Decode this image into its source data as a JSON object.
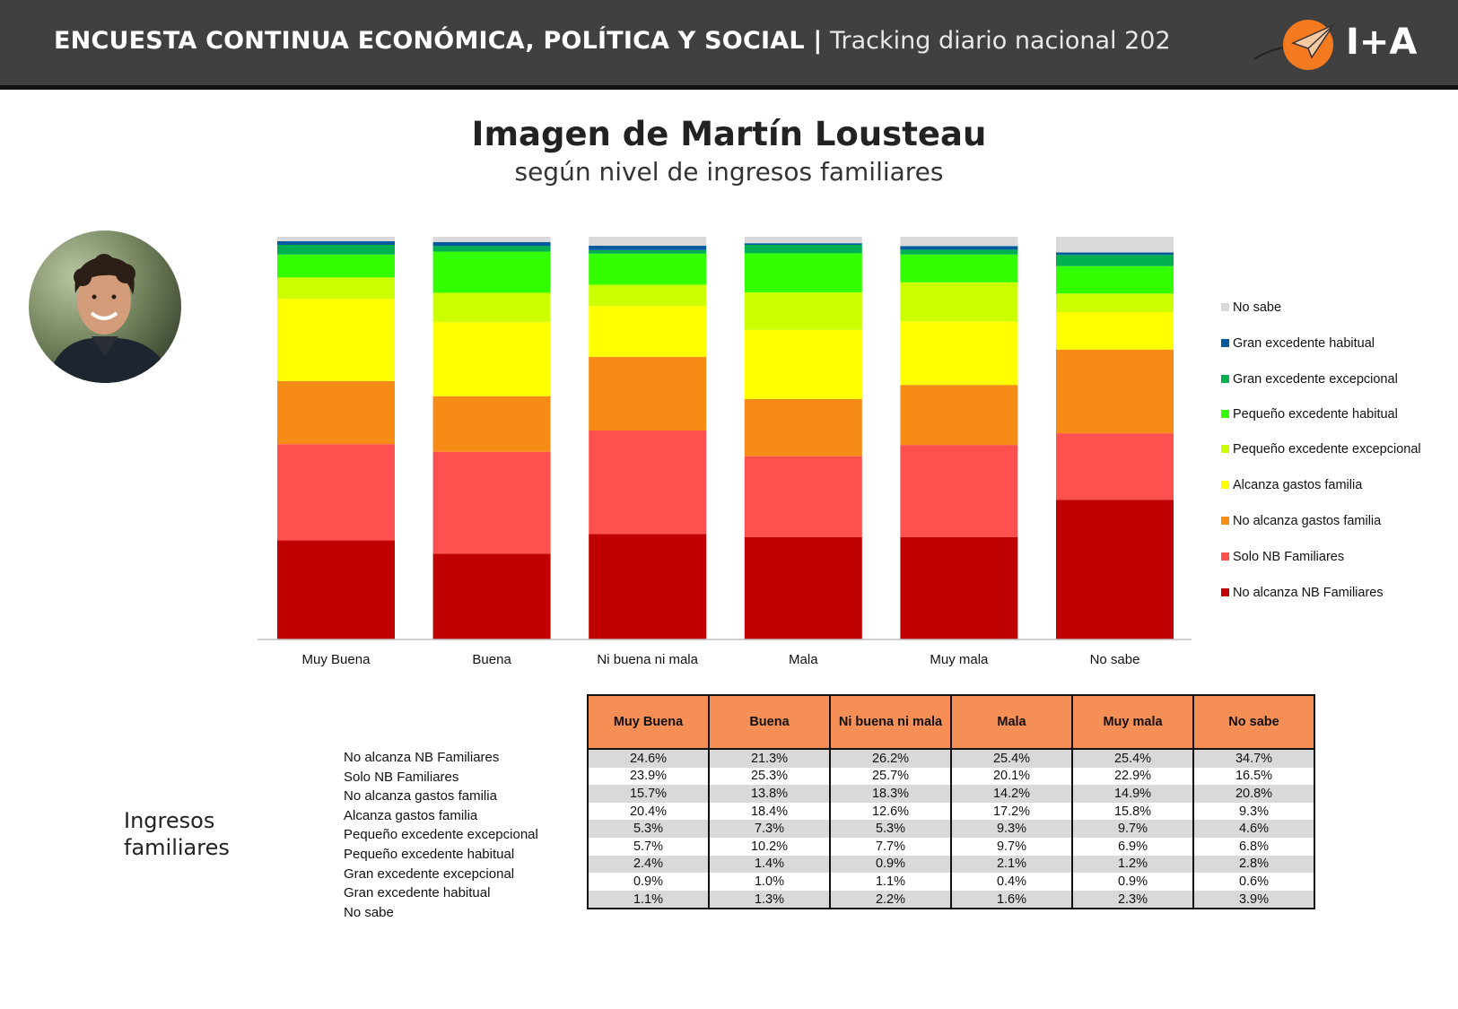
{
  "header": {
    "title_bold": "ENCUESTA CONTINUA ECONÓMICA, POLÍTICA Y SOCIAL |",
    "title_thin": "Tracking diario nacional 202",
    "logo_text": "I+A"
  },
  "colors": {
    "header_bg": "#404040",
    "table_header": "#f58f56"
  },
  "chart_data": {
    "type": "bar",
    "stacked": true,
    "normalized": true,
    "title": "Imagen de Martín Lousteau",
    "subtitle": "según nivel de ingresos familiares",
    "categories": [
      "Muy Buena",
      "Buena",
      "Ni buena ni mala",
      "Mala",
      "Muy mala",
      "No sabe"
    ],
    "ylim": [
      0,
      100
    ],
    "grid": false,
    "legend_position": "right",
    "series": [
      {
        "name": "No alcanza NB Familiares",
        "color": "#c00000",
        "values": [
          24.6,
          21.3,
          26.2,
          25.4,
          25.4,
          34.7
        ]
      },
      {
        "name": "Solo NB Familiares",
        "color": "#ff5050",
        "values": [
          23.9,
          25.3,
          25.7,
          20.1,
          22.9,
          16.5
        ]
      },
      {
        "name": "No alcanza gastos familia",
        "color": "#f68b16",
        "values": [
          15.7,
          13.8,
          18.3,
          14.2,
          14.9,
          20.8
        ]
      },
      {
        "name": "Alcanza gastos familia",
        "color": "#ffff00",
        "values": [
          20.4,
          18.4,
          12.6,
          17.2,
          15.8,
          9.3
        ]
      },
      {
        "name": "Pequeño excedente excepcional",
        "color": "#ccff00",
        "values": [
          5.3,
          7.3,
          5.3,
          9.3,
          9.7,
          4.6
        ]
      },
      {
        "name": "Pequeño excedente habitual",
        "color": "#33ff00",
        "values": [
          5.7,
          10.2,
          7.7,
          9.7,
          6.9,
          6.8
        ]
      },
      {
        "name": "Gran excedente excepcional",
        "color": "#00b050",
        "values": [
          2.4,
          1.4,
          0.9,
          2.1,
          1.2,
          2.8
        ]
      },
      {
        "name": "Gran excedente habitual",
        "color": "#005a9c",
        "values": [
          0.9,
          1.0,
          1.1,
          0.4,
          0.9,
          0.6
        ]
      },
      {
        "name": "No sabe",
        "color": "#d9d9d9",
        "values": [
          1.1,
          1.3,
          2.2,
          1.6,
          2.3,
          3.9
        ]
      }
    ]
  },
  "legend": [
    {
      "label": "No sabe",
      "color": "#d9d9d9"
    },
    {
      "label": "Gran excedente habitual",
      "color": "#005a9c"
    },
    {
      "label": "Gran excedente excepcional",
      "color": "#00b050"
    },
    {
      "label": "Pequeño excedente habitual",
      "color": "#33ff00"
    },
    {
      "label": "Pequeño excedente excepcional",
      "color": "#ccff00"
    },
    {
      "label": "Alcanza gastos familia",
      "color": "#ffff00"
    },
    {
      "label": "No alcanza gastos familia",
      "color": "#f68b16"
    },
    {
      "label": "Solo NB Familiares",
      "color": "#ff5050"
    },
    {
      "label": "No alcanza NB Familiares",
      "color": "#c00000"
    }
  ],
  "table": {
    "row_group_label": "Ingresos familiares",
    "headers": [
      "Muy Buena",
      "Buena",
      "Ni buena ni mala",
      "Mala",
      "Muy mala",
      "No sabe"
    ],
    "rows": [
      {
        "label": "No alcanza NB Familiares",
        "cells": [
          "24.6%",
          "21.3%",
          "26.2%",
          "25.4%",
          "25.4%",
          "34.7%"
        ]
      },
      {
        "label": "Solo NB Familiares",
        "cells": [
          "23.9%",
          "25.3%",
          "25.7%",
          "20.1%",
          "22.9%",
          "16.5%"
        ]
      },
      {
        "label": "No alcanza gastos familia",
        "cells": [
          "15.7%",
          "13.8%",
          "18.3%",
          "14.2%",
          "14.9%",
          "20.8%"
        ]
      },
      {
        "label": "Alcanza gastos familia",
        "cells": [
          "20.4%",
          "18.4%",
          "12.6%",
          "17.2%",
          "15.8%",
          "9.3%"
        ]
      },
      {
        "label": "Pequeño excedente excepcional",
        "cells": [
          "5.3%",
          "7.3%",
          "5.3%",
          "9.3%",
          "9.7%",
          "4.6%"
        ]
      },
      {
        "label": "Pequeño excedente habitual",
        "cells": [
          "5.7%",
          "10.2%",
          "7.7%",
          "9.7%",
          "6.9%",
          "6.8%"
        ]
      },
      {
        "label": "Gran excedente excepcional",
        "cells": [
          "2.4%",
          "1.4%",
          "0.9%",
          "2.1%",
          "1.2%",
          "2.8%"
        ]
      },
      {
        "label": "Gran excedente habitual",
        "cells": [
          "0.9%",
          "1.0%",
          "1.1%",
          "0.4%",
          "0.9%",
          "0.6%"
        ]
      },
      {
        "label": "No sabe",
        "cells": [
          "1.1%",
          "1.3%",
          "2.2%",
          "1.6%",
          "2.3%",
          "3.9%"
        ]
      }
    ]
  }
}
